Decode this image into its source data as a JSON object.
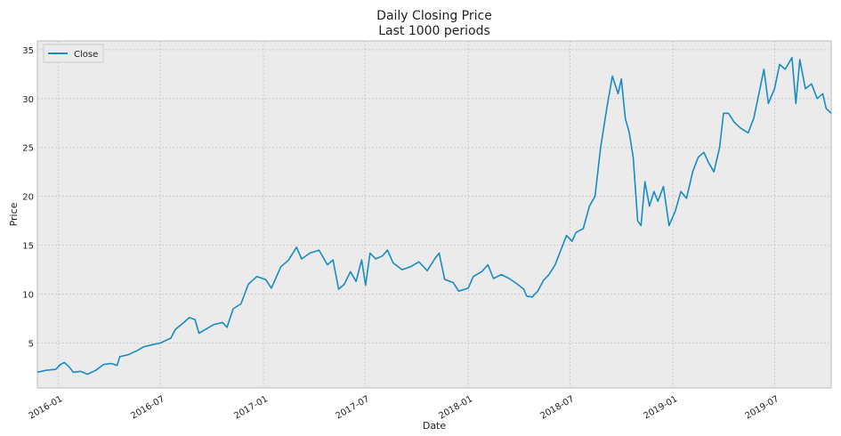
{
  "chart_data": {
    "type": "line",
    "title": "Daily Closing Price",
    "subtitle": "Last 1000 periods",
    "xlabel": "Date",
    "ylabel": "Price",
    "x_range": [
      "2015-11-25",
      "2019-10-10"
    ],
    "ylim": [
      0.4,
      35.9
    ],
    "grid": true,
    "legend_position": "top-left",
    "x_ticks": [
      "2016-01",
      "2016-07",
      "2017-01",
      "2017-07",
      "2018-01",
      "2018-07",
      "2019-01",
      "2019-07"
    ],
    "y_ticks": [
      5,
      10,
      15,
      20,
      25,
      30,
      35
    ],
    "series": [
      {
        "name": "Close",
        "color": "#188bc4",
        "points": [
          [
            "2015-11-25",
            2.0
          ],
          [
            "2015-12-10",
            2.2
          ],
          [
            "2015-12-28",
            2.3
          ],
          [
            "2016-01-05",
            2.8
          ],
          [
            "2016-01-12",
            3.0
          ],
          [
            "2016-01-20",
            2.6
          ],
          [
            "2016-01-28",
            2.0
          ],
          [
            "2016-02-10",
            2.1
          ],
          [
            "2016-02-22",
            1.8
          ],
          [
            "2016-03-08",
            2.2
          ],
          [
            "2016-03-22",
            2.8
          ],
          [
            "2016-04-05",
            2.9
          ],
          [
            "2016-04-15",
            2.7
          ],
          [
            "2016-04-20",
            3.6
          ],
          [
            "2016-05-05",
            3.8
          ],
          [
            "2016-05-20",
            4.2
          ],
          [
            "2016-06-01",
            4.6
          ],
          [
            "2016-06-15",
            4.8
          ],
          [
            "2016-07-01",
            5.0
          ],
          [
            "2016-07-20",
            5.5
          ],
          [
            "2016-07-28",
            6.4
          ],
          [
            "2016-08-10",
            7.0
          ],
          [
            "2016-08-22",
            7.6
          ],
          [
            "2016-09-01",
            7.4
          ],
          [
            "2016-09-08",
            6.0
          ],
          [
            "2016-09-20",
            6.4
          ],
          [
            "2016-10-05",
            6.9
          ],
          [
            "2016-10-20",
            7.1
          ],
          [
            "2016-10-28",
            6.6
          ],
          [
            "2016-11-08",
            8.5
          ],
          [
            "2016-11-22",
            9.0
          ],
          [
            "2016-12-05",
            11.0
          ],
          [
            "2016-12-20",
            11.8
          ],
          [
            "2017-01-05",
            11.5
          ],
          [
            "2017-01-15",
            10.6
          ],
          [
            "2017-02-01",
            12.8
          ],
          [
            "2017-02-15",
            13.5
          ],
          [
            "2017-03-01",
            14.8
          ],
          [
            "2017-03-10",
            13.6
          ],
          [
            "2017-03-25",
            14.2
          ],
          [
            "2017-04-10",
            14.5
          ],
          [
            "2017-04-25",
            13.0
          ],
          [
            "2017-05-05",
            13.5
          ],
          [
            "2017-05-15",
            10.5
          ],
          [
            "2017-05-25",
            11.0
          ],
          [
            "2017-06-05",
            12.3
          ],
          [
            "2017-06-15",
            11.3
          ],
          [
            "2017-06-25",
            13.5
          ],
          [
            "2017-07-02",
            10.9
          ],
          [
            "2017-07-10",
            14.2
          ],
          [
            "2017-07-20",
            13.6
          ],
          [
            "2017-08-01",
            13.9
          ],
          [
            "2017-08-10",
            14.5
          ],
          [
            "2017-08-20",
            13.2
          ],
          [
            "2017-09-05",
            12.5
          ],
          [
            "2017-09-20",
            12.8
          ],
          [
            "2017-10-05",
            13.3
          ],
          [
            "2017-10-20",
            12.4
          ],
          [
            "2017-11-01",
            13.5
          ],
          [
            "2017-11-10",
            14.2
          ],
          [
            "2017-11-20",
            11.5
          ],
          [
            "2017-12-05",
            11.2
          ],
          [
            "2017-12-15",
            10.3
          ],
          [
            "2018-01-01",
            10.6
          ],
          [
            "2018-01-10",
            11.8
          ],
          [
            "2018-01-25",
            12.3
          ],
          [
            "2018-02-05",
            13.0
          ],
          [
            "2018-02-15",
            11.6
          ],
          [
            "2018-03-01",
            12.0
          ],
          [
            "2018-03-15",
            11.6
          ],
          [
            "2018-03-30",
            11.0
          ],
          [
            "2018-04-10",
            10.5
          ],
          [
            "2018-04-15",
            9.8
          ],
          [
            "2018-04-25",
            9.7
          ],
          [
            "2018-05-05",
            10.3
          ],
          [
            "2018-05-15",
            11.4
          ],
          [
            "2018-05-25",
            12.0
          ],
          [
            "2018-06-05",
            13.0
          ],
          [
            "2018-06-15",
            14.5
          ],
          [
            "2018-06-25",
            16.0
          ],
          [
            "2018-07-05",
            15.4
          ],
          [
            "2018-07-12",
            16.3
          ],
          [
            "2018-07-25",
            16.7
          ],
          [
            "2018-08-05",
            19.0
          ],
          [
            "2018-08-15",
            20.0
          ],
          [
            "2018-08-25",
            25.0
          ],
          [
            "2018-09-05",
            29.0
          ],
          [
            "2018-09-15",
            32.3
          ],
          [
            "2018-09-25",
            30.5
          ],
          [
            "2018-10-01",
            32.0
          ],
          [
            "2018-10-08",
            28.0
          ],
          [
            "2018-10-15",
            26.5
          ],
          [
            "2018-10-22",
            24.0
          ],
          [
            "2018-10-30",
            17.5
          ],
          [
            "2018-11-05",
            17.0
          ],
          [
            "2018-11-12",
            21.5
          ],
          [
            "2018-11-20",
            19.0
          ],
          [
            "2018-11-28",
            20.5
          ],
          [
            "2018-12-05",
            19.5
          ],
          [
            "2018-12-15",
            21.0
          ],
          [
            "2018-12-25",
            17.0
          ],
          [
            "2019-01-05",
            18.5
          ],
          [
            "2019-01-15",
            20.5
          ],
          [
            "2019-01-25",
            19.8
          ],
          [
            "2019-02-05",
            22.5
          ],
          [
            "2019-02-15",
            24.0
          ],
          [
            "2019-02-25",
            24.5
          ],
          [
            "2019-03-05",
            23.5
          ],
          [
            "2019-03-15",
            22.5
          ],
          [
            "2019-03-25",
            25.0
          ],
          [
            "2019-04-01",
            28.5
          ],
          [
            "2019-04-10",
            28.5
          ],
          [
            "2019-04-20",
            27.6
          ],
          [
            "2019-05-01",
            27.0
          ],
          [
            "2019-05-15",
            26.5
          ],
          [
            "2019-05-25",
            28.0
          ],
          [
            "2019-06-05",
            31.0
          ],
          [
            "2019-06-12",
            33.0
          ],
          [
            "2019-06-20",
            29.5
          ],
          [
            "2019-07-01",
            31.0
          ],
          [
            "2019-07-10",
            33.5
          ],
          [
            "2019-07-20",
            33.0
          ],
          [
            "2019-08-01",
            34.2
          ],
          [
            "2019-08-08",
            29.5
          ],
          [
            "2019-08-15",
            34.0
          ],
          [
            "2019-08-25",
            31.0
          ],
          [
            "2019-09-05",
            31.5
          ],
          [
            "2019-09-15",
            30.0
          ],
          [
            "2019-09-25",
            30.5
          ],
          [
            "2019-10-01",
            29.0
          ],
          [
            "2019-10-10",
            28.5
          ]
        ]
      }
    ]
  }
}
